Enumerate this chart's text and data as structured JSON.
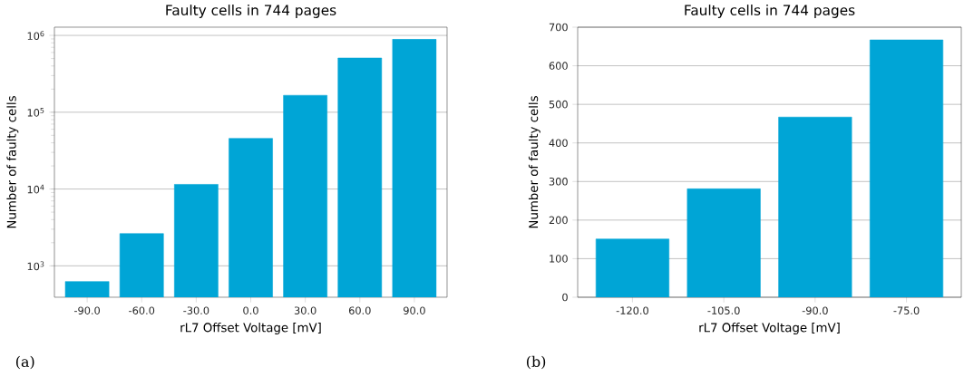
{
  "chart_data": [
    {
      "type": "bar",
      "title": "Faulty cells in 744 pages",
      "xlabel": "rL7 Offset Voltage [mV]",
      "ylabel": "Number of faulty cells",
      "categories": [
        "-90.0",
        "-60.0",
        "-30.0",
        "0.0",
        "30.0",
        "60.0",
        "90.0"
      ],
      "values": [
        625,
        2630,
        11500,
        45600,
        166000,
        508000,
        890000
      ],
      "color": "#00a5d6",
      "log": "y",
      "ylim": [
        390,
        1280000
      ],
      "yticks": [
        {
          "value": 1000,
          "label": "10$^{3}$"
        },
        {
          "value": 10000,
          "label": "10$^{4}$"
        },
        {
          "value": 100000,
          "label": "10$^{5}$"
        },
        {
          "value": 1000000,
          "label": "10$^{6}$"
        }
      ],
      "grid": "y",
      "annotations": [
        "(a)"
      ]
    },
    {
      "type": "bar",
      "title": "Faulty cells in 744 pages",
      "xlabel": "rL7 Offset Voltage [mV]",
      "ylabel": "Number of faulty cells",
      "categories": [
        "-120.0",
        "-105.0",
        "-90.0",
        "-75.0"
      ],
      "values": [
        151,
        281,
        467,
        667
      ],
      "color": "#00a5d6",
      "ylim": [
        0,
        700
      ],
      "yticks": [
        0,
        100,
        200,
        300,
        400,
        500,
        600,
        700
      ],
      "grid": "y",
      "annotations": [
        "(b)"
      ]
    }
  ]
}
